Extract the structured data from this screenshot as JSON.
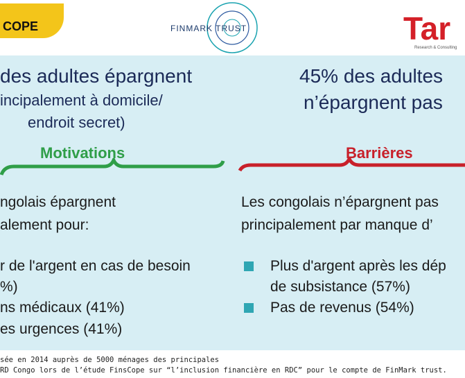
{
  "logos": {
    "left": "COPE",
    "center": "FINMARK TRUST",
    "right": "Tar",
    "right_sub": "Research & Consulting"
  },
  "left": {
    "headline": [
      "des adultes épargnent",
      "incipalement à domicile/",
      "endroit secret)"
    ],
    "section": "Motivations",
    "intro": [
      "ngolais épargnent",
      "alement pour:"
    ],
    "bullets": [
      "r de l'argent en cas de besoin",
      "%)",
      "ns médicaux (41%)",
      "es urgences (41%)"
    ]
  },
  "right": {
    "headline": [
      "45% des adultes",
      "n’épargnent pas"
    ],
    "section": "Barrières",
    "intro": [
      "Les congolais n’épargnent pas",
      "principalement par manque d’"
    ],
    "bullets": [
      [
        "Plus d'argent après les dép",
        "de subsistance (57%)"
      ],
      [
        "Pas de revenus (54%)"
      ]
    ]
  },
  "footer": [
    "sée en 2014 auprès de 5000 ménages des principales",
    "RD Congo lors de l’étude FinsCope sur “l’inclusion financière en RDC” pour le compte de FinMark trust."
  ]
}
